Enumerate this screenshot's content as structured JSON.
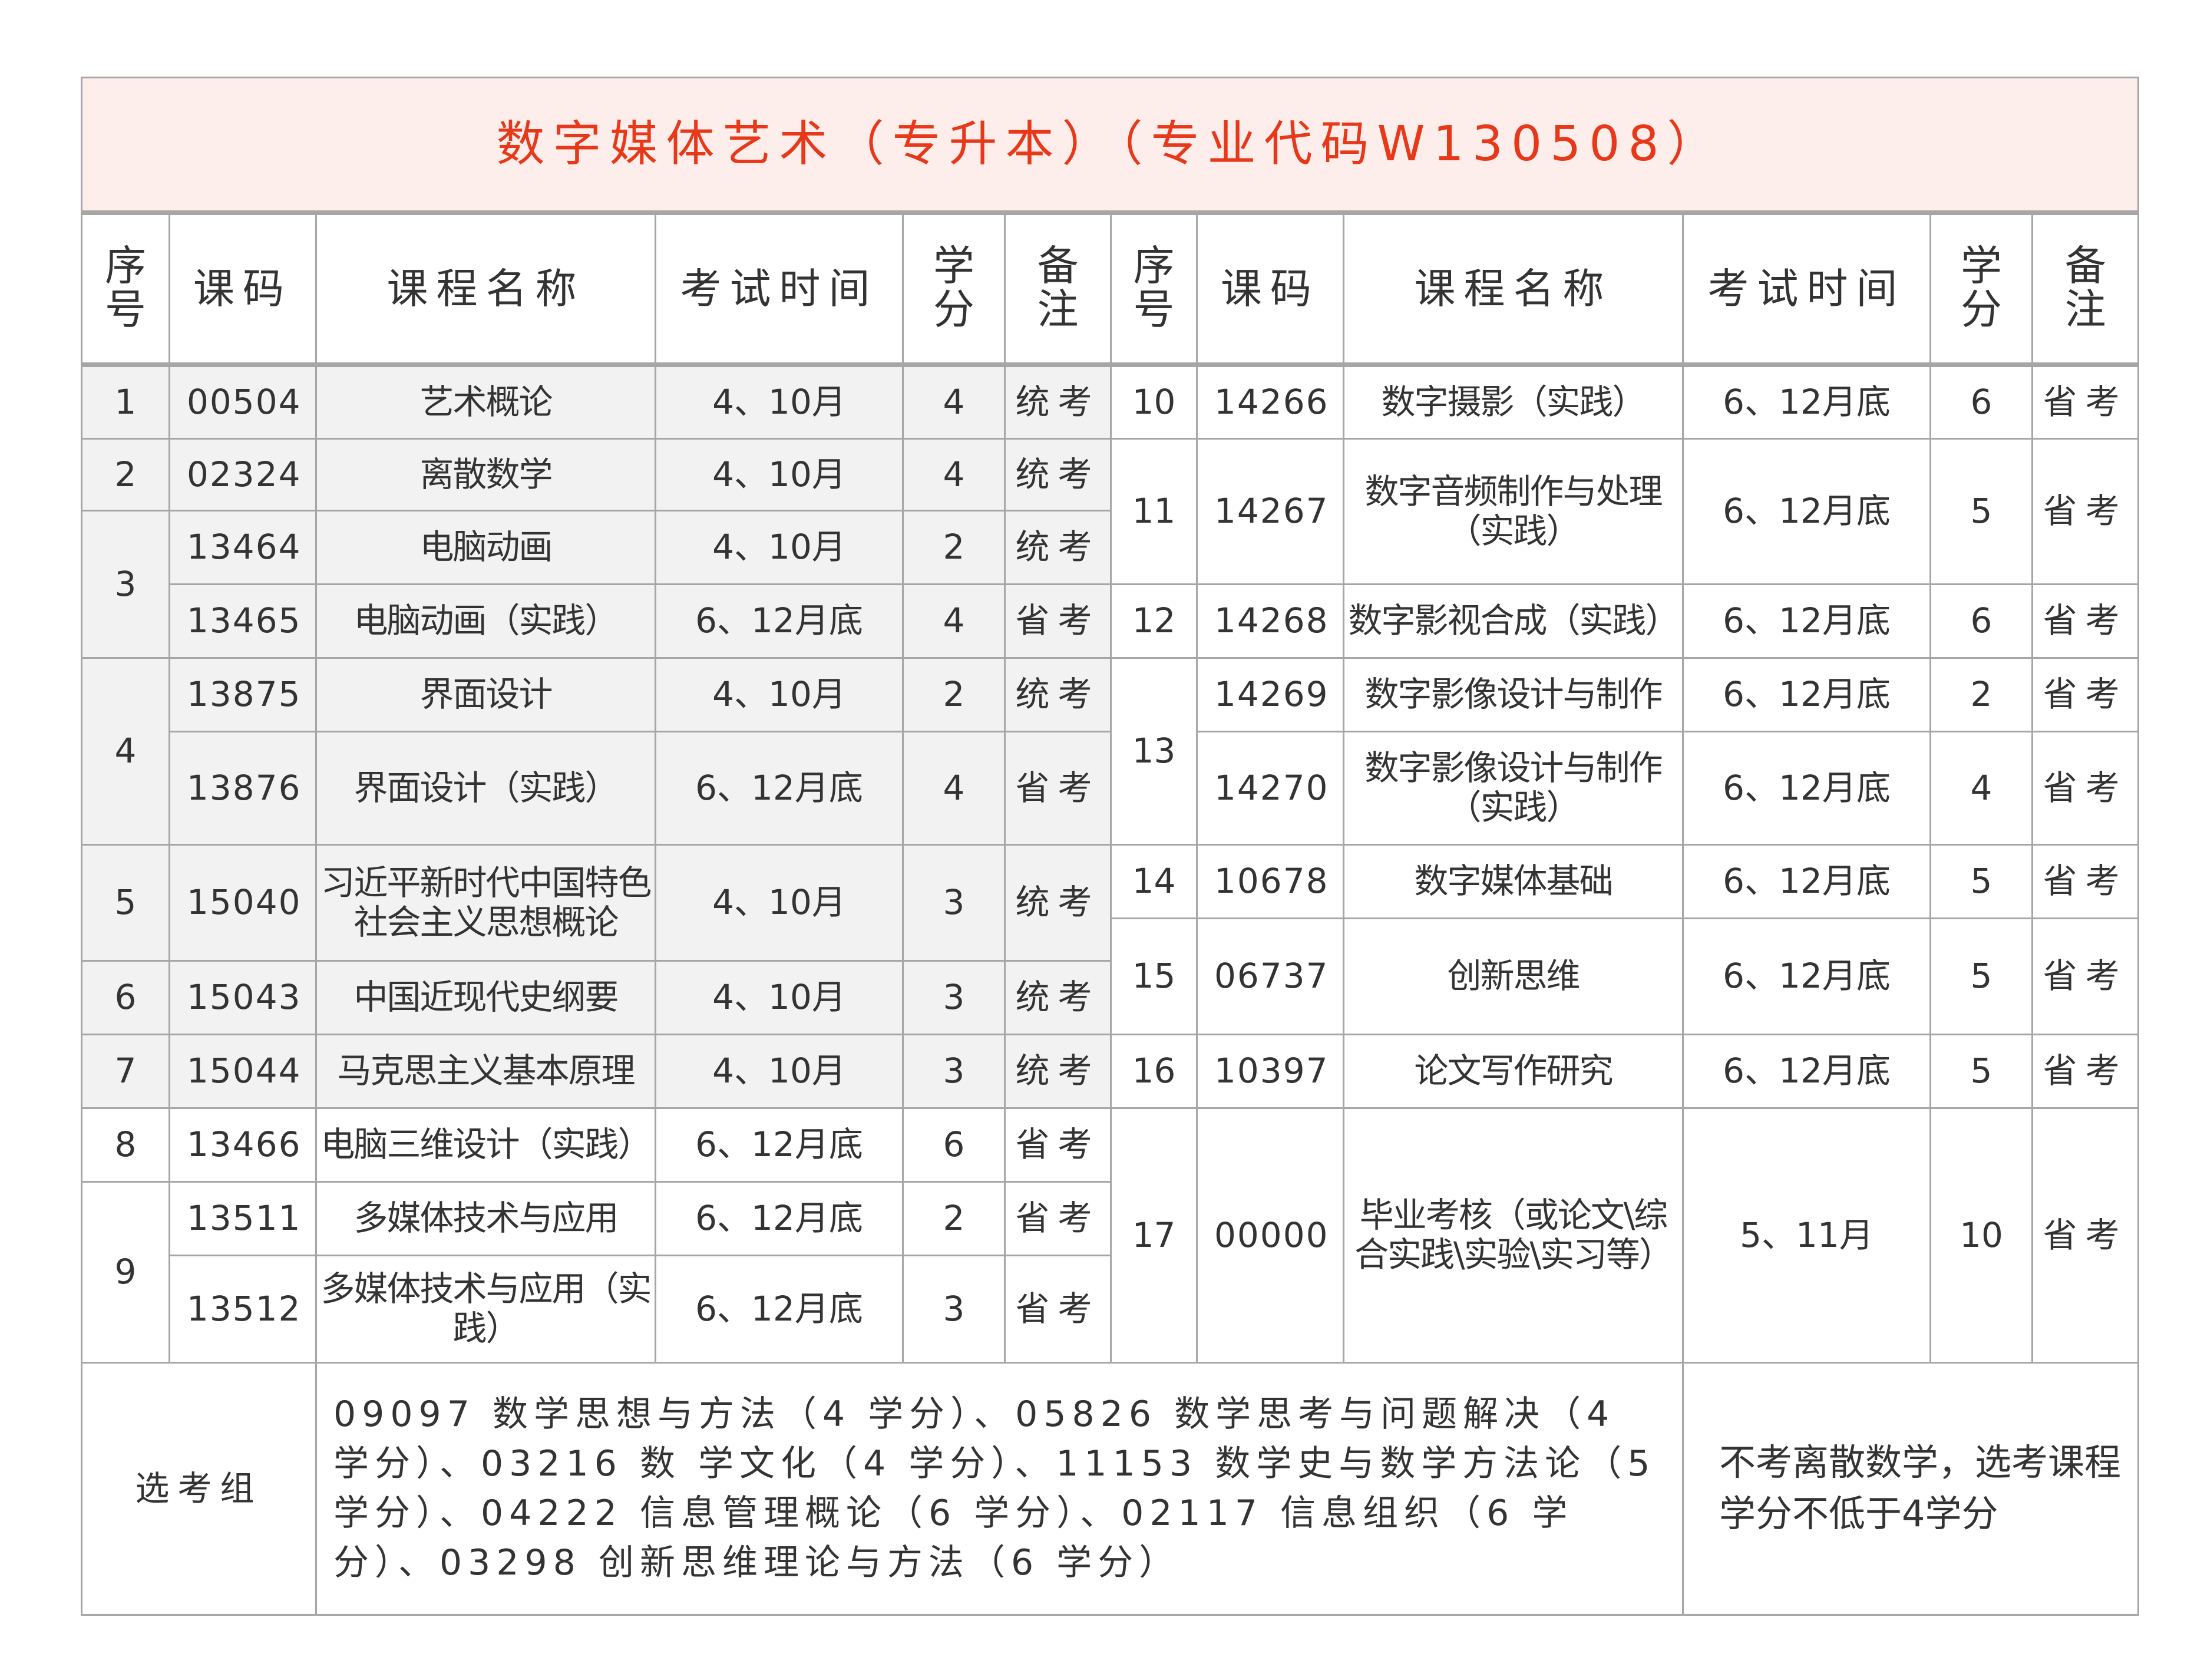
{
  "title": "数字媒体艺术（专升本）（专业代码W130508）",
  "headers": {
    "seq": "序号",
    "code": "课码",
    "name": "课程名称",
    "time": "考试时间",
    "credit": "学分",
    "note": "备注"
  },
  "left_courses": [
    {
      "seq": "1",
      "code": "00504",
      "name": "艺术概论",
      "time": "4、10月",
      "credit": "4",
      "note": "统考"
    },
    {
      "seq": "2",
      "code": "02324",
      "name": "离散数学",
      "time": "4、10月",
      "credit": "4",
      "note": "统考"
    },
    {
      "seq": "3",
      "code": "13464",
      "name": "电脑动画",
      "time": "4、10月",
      "credit": "2",
      "note": "统考"
    },
    {
      "seq": "3",
      "code": "13465",
      "name": "电脑动画（实践）",
      "time": "6、12月底",
      "credit": "4",
      "note": "省考"
    },
    {
      "seq": "4",
      "code": "13875",
      "name": "界面设计",
      "time": "4、10月",
      "credit": "2",
      "note": "统考"
    },
    {
      "seq": "4",
      "code": "13876",
      "name": "界面设计（实践）",
      "time": "6、12月底",
      "credit": "4",
      "note": "省考"
    },
    {
      "seq": "5",
      "code": "15040",
      "name": "习近平新时代中国特色社会主义思想概论",
      "time": "4、10月",
      "credit": "3",
      "note": "统考"
    },
    {
      "seq": "6",
      "code": "15043",
      "name": "中国近现代史纲要",
      "time": "4、10月",
      "credit": "3",
      "note": "统考"
    },
    {
      "seq": "7",
      "code": "15044",
      "name": "马克思主义基本原理",
      "time": "4、10月",
      "credit": "3",
      "note": "统考"
    },
    {
      "seq": "8",
      "code": "13466",
      "name": "电脑三维设计（实践）",
      "time": "6、12月底",
      "credit": "6",
      "note": "省考"
    },
    {
      "seq": "9",
      "code": "13511",
      "name": "多媒体技术与应用",
      "time": "6、12月底",
      "credit": "2",
      "note": "省考"
    },
    {
      "seq": "9",
      "code": "13512",
      "name": "多媒体技术与应用（实践）",
      "time": "6、12月底",
      "credit": "3",
      "note": "省考"
    }
  ],
  "right_courses": [
    {
      "seq": "10",
      "code": "14266",
      "name": "数字摄影（实践）",
      "time": "6、12月底",
      "credit": "6",
      "note": "省考"
    },
    {
      "seq": "11",
      "code": "14267",
      "name": "数字音频制作与处理（实践）",
      "time": "6、12月底",
      "credit": "5",
      "note": "省考"
    },
    {
      "seq": "12",
      "code": "14268",
      "name": "数字影视合成（实践）",
      "time": "6、12月底",
      "credit": "6",
      "note": "省考"
    },
    {
      "seq": "13",
      "code": "14269",
      "name": "数字影像设计与制作",
      "time": "6、12月底",
      "credit": "2",
      "note": "省考"
    },
    {
      "seq": "13",
      "code": "14270",
      "name": "数字影像设计与制作（实践）",
      "time": "6、12月底",
      "credit": "4",
      "note": "省考"
    },
    {
      "seq": "14",
      "code": "10678",
      "name": "数字媒体基础",
      "time": "6、12月底",
      "credit": "5",
      "note": "省考"
    },
    {
      "seq": "15",
      "code": "06737",
      "name": "创新思维",
      "time": "6、12月底",
      "credit": "5",
      "note": "省考"
    },
    {
      "seq": "16",
      "code": "10397",
      "name": "论文写作研究",
      "time": "6、12月底",
      "credit": "5",
      "note": "省考"
    },
    {
      "seq": "17",
      "code": "00000",
      "name": "毕业考核（或论文\\综合实践\\实验\\实习等）",
      "time": "5、11月",
      "credit": "10",
      "note": "省考"
    }
  ],
  "elective": {
    "label": "选考组",
    "courses": "09097 数学思想与方法（4 学分）、05826 数学思考与问题解决（4 学分）、03216 数 学文化（4 学分）、11153 数学史与数学方法论（5 学分）、04222 信息管理概论（6 学分）、02117 信息组织（6 学分）、03298 创新思维理论与方法（6 学分）",
    "remark": "不考离散数学，选考课程学分不低于4学分"
  },
  "colors": {
    "title": "#e8381a",
    "title_bg": "#fdeeeb",
    "shaded_cell": "#f2f2f2",
    "border": "#a6a6a6"
  }
}
